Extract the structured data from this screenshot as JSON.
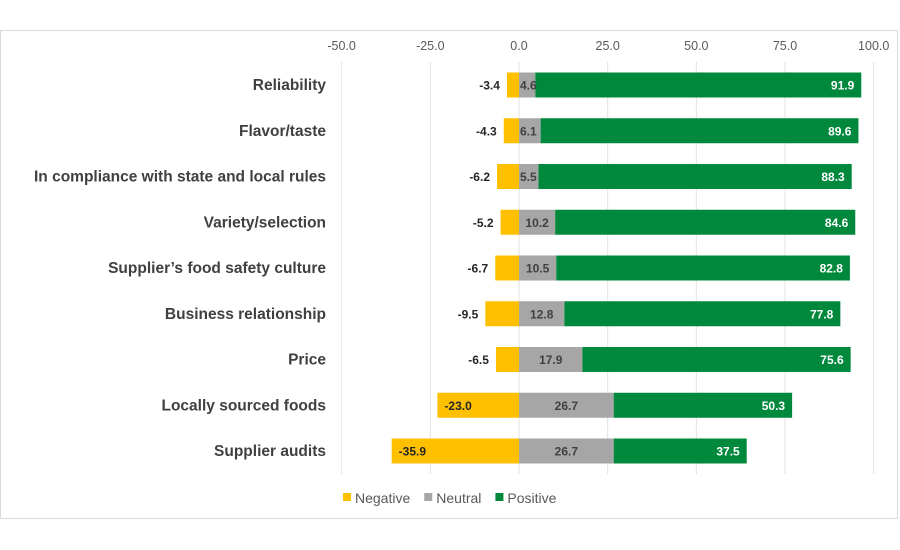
{
  "chart_data": {
    "type": "bar",
    "orientation": "horizontal",
    "stacked": "diverging",
    "categories": [
      "Reliability",
      "Flavor/taste",
      "In compliance with state and local rules",
      "Variety/selection",
      "Supplier’s food safety culture",
      "Business relationship",
      "Price",
      "Locally sourced foods",
      "Supplier audits"
    ],
    "series": [
      {
        "name": "Negative",
        "color": "#FFC000",
        "values": [
          -3.4,
          -4.3,
          -6.2,
          -5.2,
          -6.7,
          -9.5,
          -6.5,
          -23.0,
          -35.9
        ]
      },
      {
        "name": "Neutral",
        "color": "#A6A6A6",
        "values": [
          4.6,
          6.1,
          5.5,
          10.2,
          10.5,
          12.8,
          17.9,
          26.7,
          26.7
        ]
      },
      {
        "name": "Positive",
        "color": "#00893D",
        "values": [
          91.9,
          89.6,
          88.3,
          84.6,
          82.8,
          77.8,
          75.6,
          50.3,
          37.5
        ]
      }
    ],
    "xlim": [
      -50,
      100
    ],
    "xticks": [
      "-50.0",
      "-25.0",
      "0.0",
      "25.0",
      "50.0",
      "75.0",
      "100.0"
    ],
    "xtick_values": [
      -50,
      -25,
      0,
      25,
      50,
      75,
      100
    ],
    "grid": true,
    "legend": "bottom",
    "title": "",
    "xlabel": "",
    "ylabel": ""
  }
}
